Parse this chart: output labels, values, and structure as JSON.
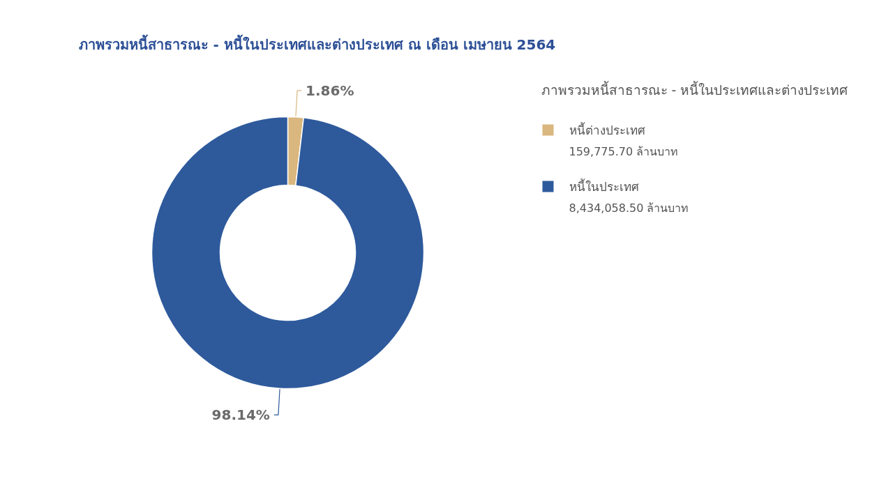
{
  "chart_data": {
    "type": "donut",
    "title": "ภาพรวมหนี้สาธารณะ - หนี้ในประเทศและต่างประเทศ ณ เดือน เมษายน 2564",
    "legend_title": "ภาพรวมหนี้สาธารณะ - หนี้ในประเทศและต่างประเทศ",
    "categories": [
      "หนี้ต่างประเทศ",
      "หนี้ในประเทศ"
    ],
    "values": [
      1.86,
      98.14
    ],
    "colors": [
      "#d9b77e",
      "#2e5a9c"
    ],
    "value_labels": [
      "1.86%",
      "98.14%"
    ],
    "annotations": [
      "159,775.70 ล้านบาท",
      "8,434,058.50 ล้านบาท"
    ],
    "legend": "right"
  }
}
